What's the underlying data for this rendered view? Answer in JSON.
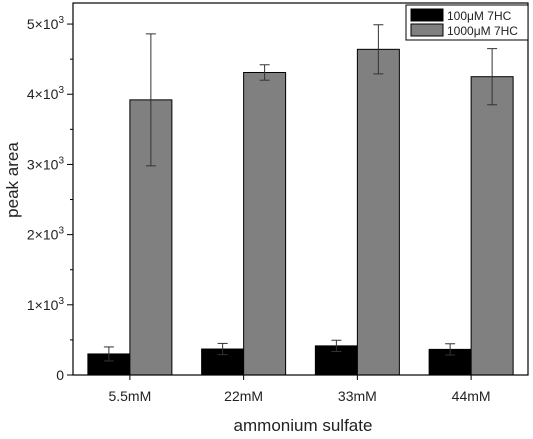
{
  "chart_data": {
    "type": "bar",
    "title": "",
    "xlabel": "ammonium sulfate",
    "ylabel": "peak area",
    "categories": [
      "5.5mM",
      "22mM",
      "33mM",
      "44mM"
    ],
    "ylim": [
      0,
      5000
    ],
    "yticks": [
      {
        "value": 0,
        "mantissa": "0",
        "exp": ""
      },
      {
        "value": 1000,
        "mantissa": "1×10",
        "exp": "3"
      },
      {
        "value": 2000,
        "mantissa": "2×10",
        "exp": "3"
      },
      {
        "value": 3000,
        "mantissa": "3×10",
        "exp": "3"
      },
      {
        "value": 4000,
        "mantissa": "4×10",
        "exp": "3"
      },
      {
        "value": 5000,
        "mantissa": "5×10",
        "exp": "3"
      }
    ],
    "grid": false,
    "legend_position": "top-right",
    "series": [
      {
        "name": "100μM 7HC",
        "color": "#000000",
        "values": [
          300,
          370,
          415,
          365
        ],
        "errors": [
          100,
          80,
          80,
          80
        ]
      },
      {
        "name": "1000μM 7HC",
        "color": "#808080",
        "values": [
          3920,
          4310,
          4640,
          4250
        ],
        "errors": [
          940,
          110,
          350,
          400
        ]
      }
    ]
  }
}
